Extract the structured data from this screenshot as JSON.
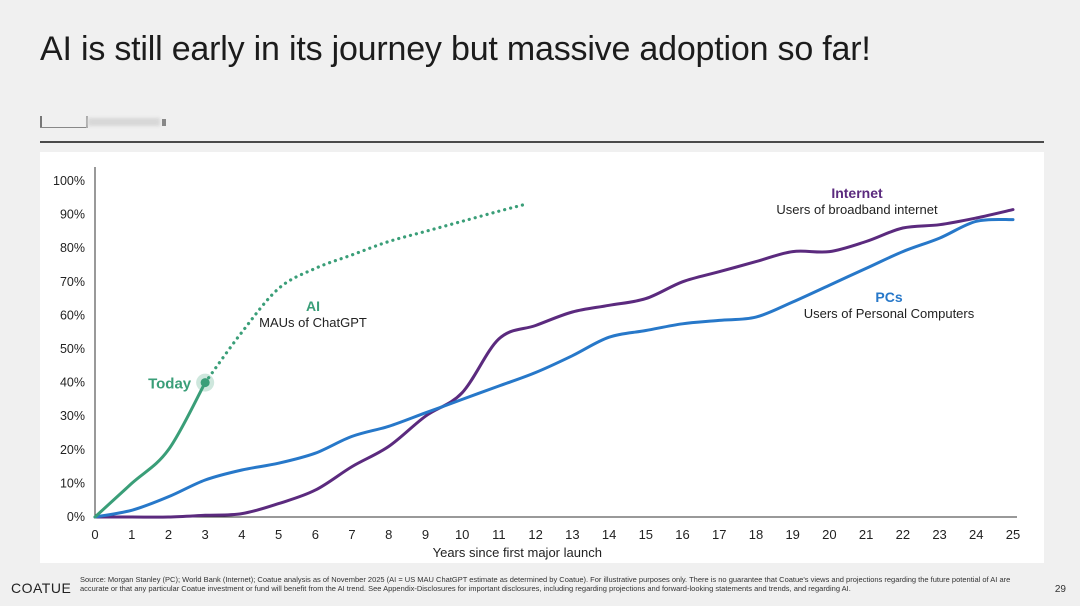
{
  "slide": {
    "title": "AI is still early in its journey but massive adoption so far!",
    "logo": "COATUE",
    "source": "Source: Morgan Stanley (PC); World Bank (Internet); Coatue analysis as of November 2025 (AI = US MAU ChatGPT estimate as determined by Coatue). For illustrative purposes only. There is no guarantee that Coatue's views and projections regarding the future potential of AI are accurate or that any particular Coatue investment or fund will benefit from the AI trend. See Appendix-Disclosures for important disclosures, including regarding projections and forward-looking statements and trends, and regarding AI.",
    "page_number": "29"
  },
  "chart_data": {
    "type": "line",
    "title": "",
    "xlabel": "Years since first major launch",
    "ylabel": "",
    "xlim": [
      0,
      25
    ],
    "ylim": [
      0,
      100
    ],
    "x_ticks": [
      "0",
      "1",
      "2",
      "3",
      "4",
      "5",
      "6",
      "7",
      "8",
      "9",
      "10",
      "11",
      "12",
      "13",
      "14",
      "15",
      "16",
      "17",
      "18",
      "19",
      "20",
      "21",
      "22",
      "23",
      "24",
      "25"
    ],
    "y_ticks": [
      "0%",
      "10%",
      "20%",
      "30%",
      "40%",
      "50%",
      "60%",
      "70%",
      "80%",
      "90%",
      "100%"
    ],
    "grid": false,
    "series": [
      {
        "name": "AI",
        "subtitle": "MAUs of ChatGPT",
        "color": "#3a9e78",
        "points": [
          [
            0,
            0
          ],
          [
            1,
            10
          ],
          [
            2,
            20
          ],
          [
            3,
            40
          ]
        ],
        "projection": [
          [
            3,
            40
          ],
          [
            4,
            55
          ],
          [
            5,
            68
          ],
          [
            6,
            74
          ],
          [
            7,
            78
          ],
          [
            8,
            82
          ],
          [
            9,
            85
          ],
          [
            10,
            88
          ],
          [
            11,
            91
          ],
          [
            11.7,
            93
          ]
        ]
      },
      {
        "name": "Internet",
        "subtitle": "Users of broadband internet",
        "color": "#5b2a7e",
        "points": [
          [
            0,
            0
          ],
          [
            1,
            0
          ],
          [
            2,
            0
          ],
          [
            3,
            0.5
          ],
          [
            4,
            1
          ],
          [
            5,
            4
          ],
          [
            6,
            8
          ],
          [
            7,
            15
          ],
          [
            8,
            21
          ],
          [
            9,
            30
          ],
          [
            10,
            37
          ],
          [
            11,
            53
          ],
          [
            12,
            57
          ],
          [
            13,
            61
          ],
          [
            14,
            63
          ],
          [
            15,
            65
          ],
          [
            16,
            70
          ],
          [
            17,
            73
          ],
          [
            18,
            76
          ],
          [
            19,
            79
          ],
          [
            20,
            79
          ],
          [
            21,
            82
          ],
          [
            22,
            86
          ],
          [
            23,
            87
          ],
          [
            24,
            89
          ],
          [
            25,
            91.5
          ]
        ]
      },
      {
        "name": "PCs",
        "subtitle": "Users of Personal Computers",
        "color": "#2778c9",
        "points": [
          [
            0,
            0
          ],
          [
            1,
            2
          ],
          [
            2,
            6
          ],
          [
            3,
            11
          ],
          [
            4,
            14
          ],
          [
            5,
            16
          ],
          [
            6,
            19
          ],
          [
            7,
            24
          ],
          [
            8,
            27
          ],
          [
            9,
            31
          ],
          [
            10,
            35
          ],
          [
            11,
            39
          ],
          [
            12,
            43
          ],
          [
            13,
            48
          ],
          [
            14,
            53.5
          ],
          [
            15,
            55.5
          ],
          [
            16,
            57.5
          ],
          [
            17,
            58.5
          ],
          [
            18,
            59.5
          ],
          [
            19,
            64
          ],
          [
            20,
            69
          ],
          [
            21,
            74
          ],
          [
            22,
            79
          ],
          [
            23,
            83
          ],
          [
            24,
            88
          ],
          [
            25,
            88.5
          ]
        ]
      }
    ],
    "annotations": {
      "today_label": "Today",
      "today_point": [
        3,
        40
      ]
    }
  }
}
